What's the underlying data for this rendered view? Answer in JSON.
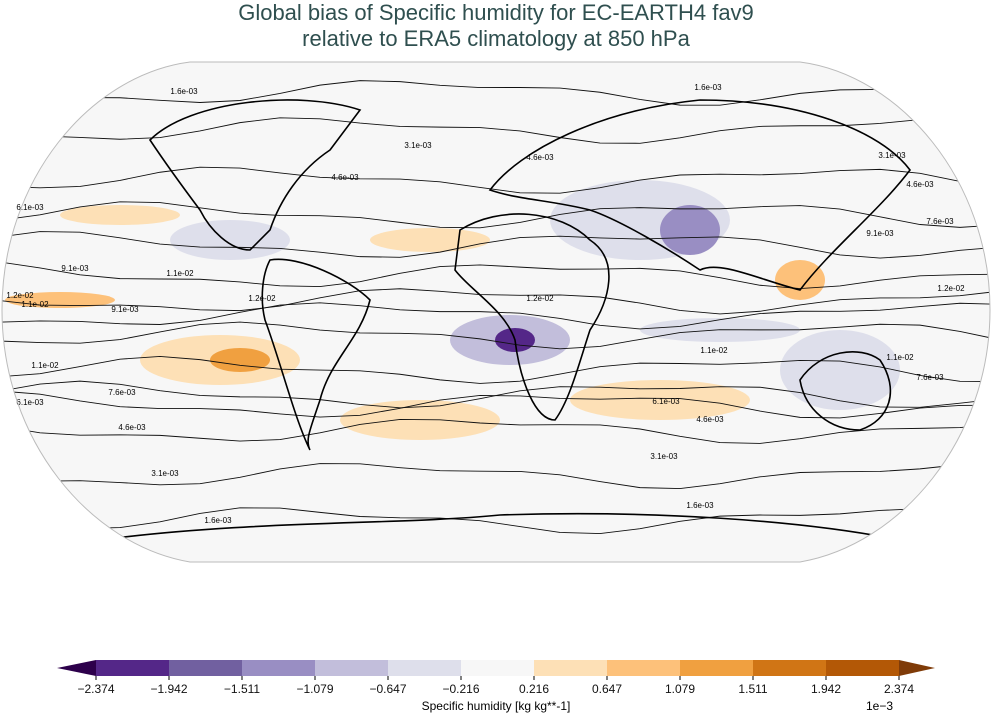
{
  "title_line1": "Global bias of Specific humidity for EC-EARTH4 fav9",
  "title_line2": "relative to ERA5 climatology at 850 hPa",
  "colorbar": {
    "label": "Specific humidity [kg kg**-1]",
    "scale": "1e−3",
    "ticks": [
      "−2.374",
      "−1.942",
      "−1.511",
      "−1.079",
      "−0.647",
      "−0.216",
      "0.216",
      "0.647",
      "1.079",
      "1.511",
      "1.942",
      "2.374"
    ],
    "colors": [
      "#2d004b",
      "#542788",
      "#7160a0",
      "#998ec3",
      "#c2bedb",
      "#dedfeb",
      "#f7f7f7",
      "#fde0b6",
      "#fdc17a",
      "#f0a040",
      "#d07515",
      "#b35806",
      "#7f3b08"
    ]
  },
  "contour_labels": [
    "1.6e-03",
    "3.1e-03",
    "4.6e-03",
    "6.1e-03",
    "7.6e-03",
    "9.1e-03",
    "1.1e-02",
    "1.2e-02"
  ]
}
